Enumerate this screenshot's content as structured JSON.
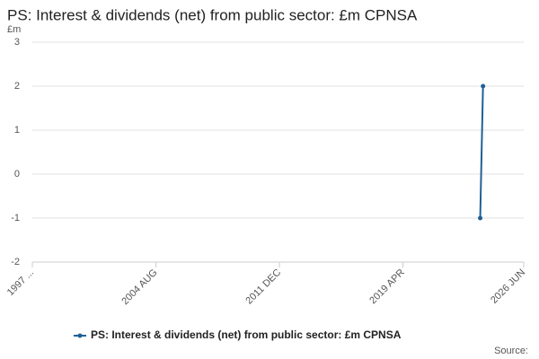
{
  "chart_data": {
    "type": "line",
    "title": "PS: Interest & dividends (net) from public sector: £m CPNSA",
    "y_label": "£m",
    "source": "Source:",
    "x": [
      "2023 NOV",
      "2024 JAN"
    ],
    "series": [
      {
        "name": "PS: Interest & dividends (net) from public sector: £m CPNSA",
        "color": "#206095",
        "values": [
          -1,
          2
        ]
      }
    ],
    "xlim": [
      "1997 APR",
      "2026 JUN"
    ],
    "xticks": [
      {
        "value": "1997 APR",
        "label": "1997 ..."
      },
      "2004 AUG",
      "2011 DEC",
      "2019 APR",
      "2026 JUN"
    ],
    "ylim": [
      -2,
      3
    ],
    "yticks": [
      -2,
      -1,
      0,
      1,
      2,
      3
    ],
    "grid": true
  }
}
